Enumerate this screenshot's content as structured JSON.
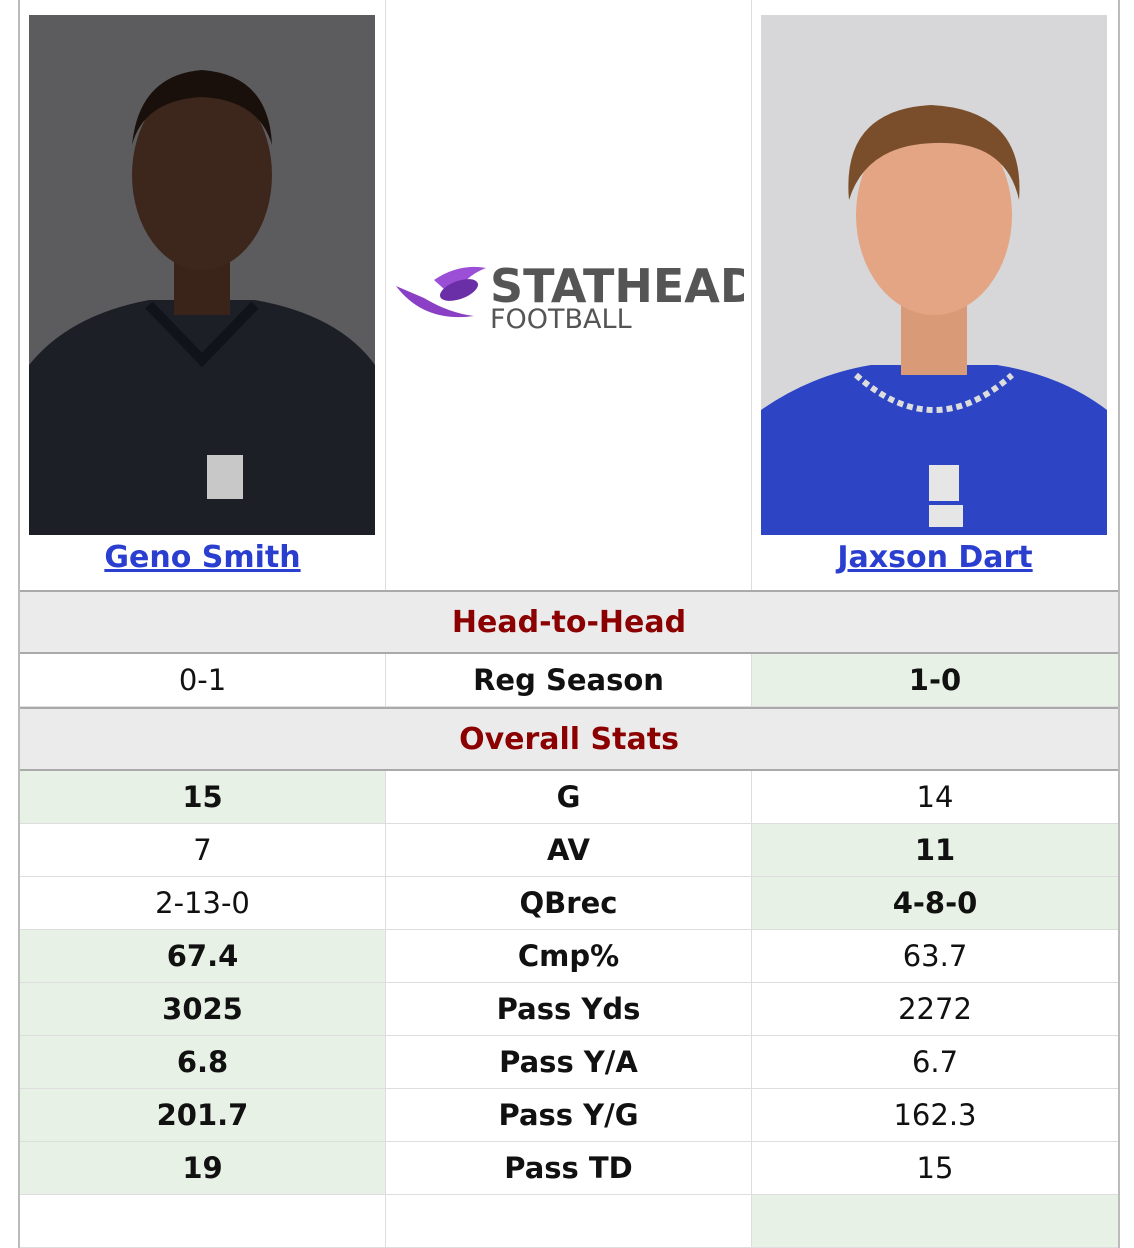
{
  "players": [
    {
      "name": "Geno Smith"
    },
    {
      "name": "Jaxson Dart"
    }
  ],
  "logo": {
    "line1": "STATHEAD",
    "line2": "FOOTBALL"
  },
  "sections": [
    {
      "title": "Head-to-Head",
      "rows": [
        {
          "label": "Reg Season",
          "left": "0-1",
          "right": "1-0",
          "leader": "right"
        }
      ]
    },
    {
      "title": "Overall Stats",
      "rows": [
        {
          "label": "G",
          "left": "15",
          "right": "14",
          "leader": "left"
        },
        {
          "label": "AV",
          "left": "7",
          "right": "11",
          "leader": "right"
        },
        {
          "label": "QBrec",
          "left": "2-13-0",
          "right": "4-8-0",
          "leader": "right"
        },
        {
          "label": "Cmp%",
          "left": "67.4",
          "right": "63.7",
          "leader": "left"
        },
        {
          "label": "Pass Yds",
          "left": "3025",
          "right": "2272",
          "leader": "left"
        },
        {
          "label": "Pass Y/A",
          "left": "6.8",
          "right": "6.7",
          "leader": "left"
        },
        {
          "label": "Pass Y/G",
          "left": "201.7",
          "right": "162.3",
          "leader": "left"
        },
        {
          "label": "Pass TD",
          "left": "19",
          "right": "15",
          "leader": "left"
        }
      ]
    }
  ]
}
